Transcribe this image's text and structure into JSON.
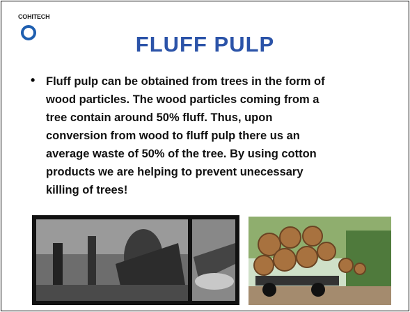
{
  "header": {
    "logo": "COHITECH",
    "title": "FLUFF PULP"
  },
  "bullet": {
    "lines": [
      "Fluff pulp can be obtained from trees in the form of",
      "wood particles. The wood particles coming from a",
      "tree contain around 50% fluff. Thus, upon",
      "conversion from wood to fluff pulp there us an",
      "average waste of 50% of the tree. By using cotton",
      "products we are helping to prevent unecessary",
      "killing of trees!"
    ]
  }
}
